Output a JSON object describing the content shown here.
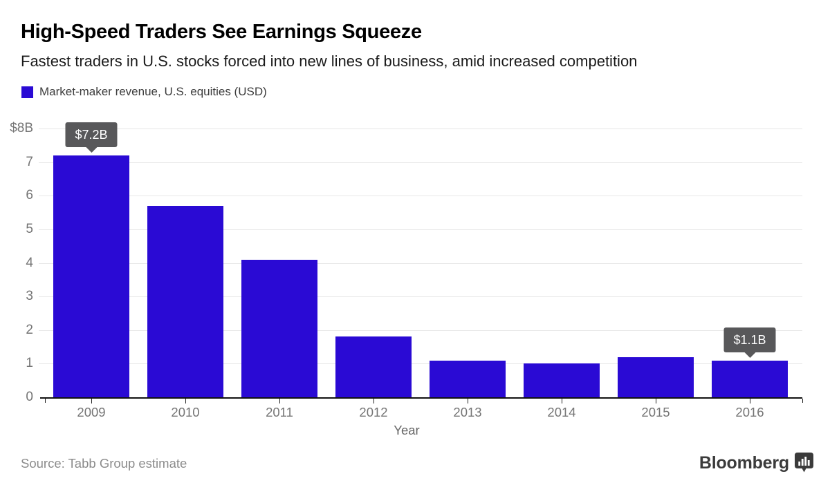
{
  "header": {
    "title": "High-Speed Traders See Earnings Squeeze",
    "subtitle": "Fastest traders in U.S. stocks forced into new lines of business, amid increased competition",
    "legend_label": "Market-maker revenue, U.S. equities (USD)"
  },
  "chart_data": {
    "type": "bar",
    "title": "Market-maker revenue, U.S. equities (USD)",
    "categories": [
      "2009",
      "2010",
      "2011",
      "2012",
      "2013",
      "2014",
      "2015",
      "2016"
    ],
    "values": [
      7.2,
      5.7,
      4.1,
      1.8,
      1.1,
      1.0,
      1.2,
      1.1
    ],
    "xlabel": "Year",
    "ylabel": "",
    "ylim": [
      0,
      8
    ],
    "yticks": [
      {
        "value": 8,
        "label": "$8B"
      },
      {
        "value": 7,
        "label": "7"
      },
      {
        "value": 6,
        "label": "6"
      },
      {
        "value": 5,
        "label": "5"
      },
      {
        "value": 4,
        "label": "4"
      },
      {
        "value": 3,
        "label": "3"
      },
      {
        "value": 2,
        "label": "2"
      },
      {
        "value": 1,
        "label": "1"
      },
      {
        "value": 0,
        "label": "0"
      }
    ],
    "grid": true,
    "bar_color": "#2A0AD4",
    "gridline_color": "#e7e7e7",
    "callout_color": "#58585A",
    "annotations": [
      {
        "category": "2009",
        "label": "$7.2B"
      },
      {
        "category": "2016",
        "label": "$1.1B"
      }
    ],
    "legend_position": "top-left"
  },
  "footer": {
    "source": "Source: Tabb Group estimate",
    "brand": "Bloomberg"
  }
}
